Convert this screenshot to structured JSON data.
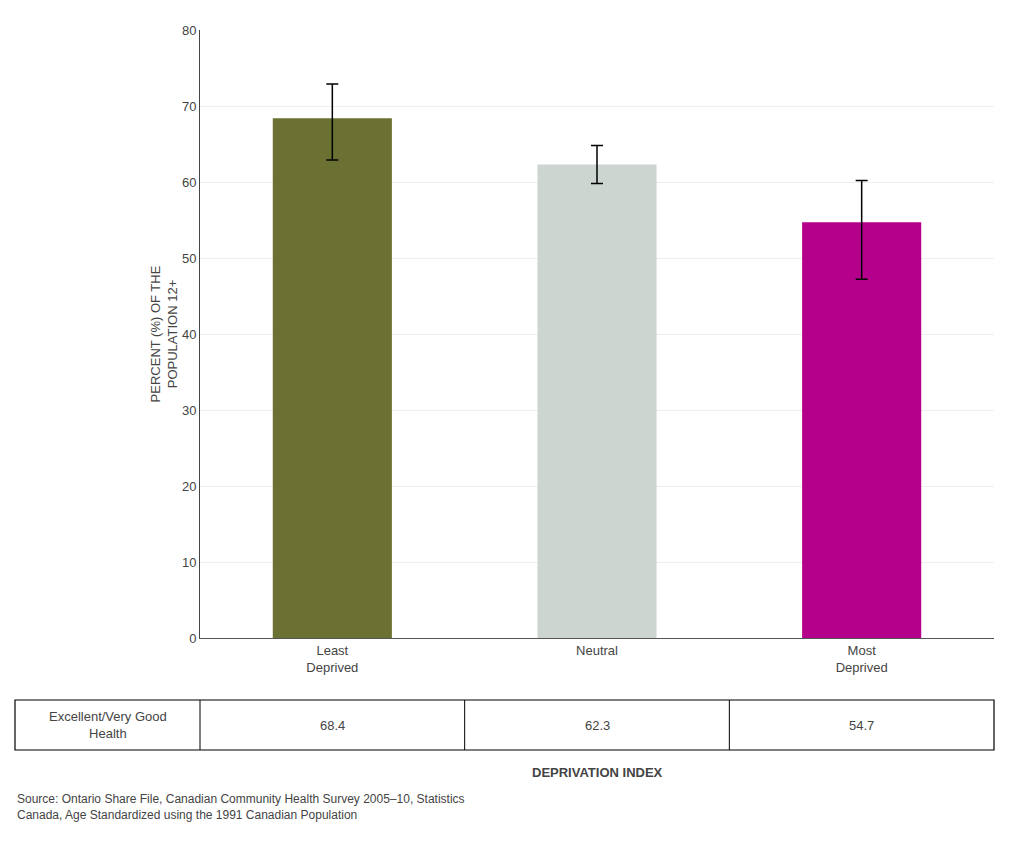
{
  "chart_data": {
    "type": "bar",
    "categories": [
      "Least\nDeprived",
      "Neutral",
      "Most\nDeprived"
    ],
    "values": [
      68.4,
      62.3,
      54.7
    ],
    "errors_upper": [
      4.5,
      2.5,
      5.5
    ],
    "errors_lower": [
      5.5,
      2.5,
      7.5
    ],
    "colors": [
      "#6b7132",
      "#cdd5d0",
      "#b5008c"
    ],
    "ylabel": "PERCENT (%) OF THE\nPOPULATION 12+",
    "xlabel": "DEPRIVATION INDEX",
    "ylim": [
      0,
      80
    ],
    "yticks": [
      0,
      10,
      20,
      30,
      40,
      50,
      60,
      70,
      80
    ],
    "grid": true,
    "table": {
      "row_label": "Excellent/Very Good\nHealth",
      "values": [
        "68.4",
        "62.3",
        "54.7"
      ]
    },
    "source": "Source: Ontario Share File, Canadian Community Health Survey 2005–10, Statistics\nCanada, Age Standardized using the 1991 Canadian Population"
  }
}
